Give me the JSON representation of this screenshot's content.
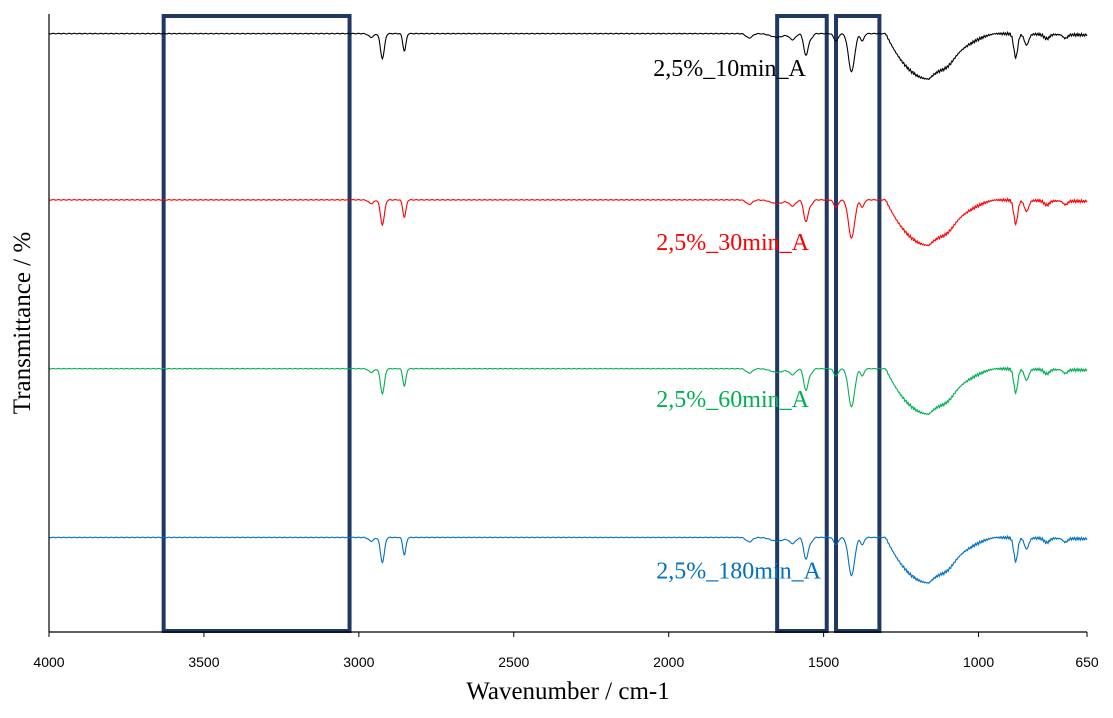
{
  "chart_data": {
    "type": "line",
    "title": "",
    "xlabel": "Wavenumber / cm-1",
    "ylabel": "Transmittance / %",
    "xlim": [
      4000,
      650
    ],
    "x_reversed": true,
    "ylim": [
      0,
      1
    ],
    "y_ticks_labeled": false,
    "grid": false,
    "legend": "none",
    "x_ticks": [
      4000,
      3500,
      3000,
      2500,
      2000,
      1500,
      1000,
      650
    ],
    "x_tick_labels": [
      "4000",
      "3500",
      "3000",
      "2500",
      "2000",
      "1500",
      "1000",
      "650"
    ],
    "highlight_regions": [
      {
        "x_range": [
          3630,
          3030
        ],
        "color": "#1f3864"
      },
      {
        "x_range": [
          1650,
          1490
        ],
        "color": "#1f3864"
      },
      {
        "x_range": [
          1460,
          1320
        ],
        "color": "#1f3864"
      }
    ],
    "series": [
      {
        "name": "2,5%_10min_A",
        "color": "#000000",
        "offset": 0.9683,
        "depth": 0.1185,
        "label_x": 2050,
        "label_y": 0.9
      },
      {
        "name": "2,5%_30min_A",
        "color": "#ff0000",
        "offset": 0.6992,
        "depth": 0.1185,
        "label_x": 2040,
        "label_y": 0.6183
      },
      {
        "name": "2,5%_60min_A",
        "color": "#00b050",
        "offset": 0.4261,
        "depth": 0.1185,
        "label_x": 2040,
        "label_y": 0.3637
      },
      {
        "name": "2,5%_180min_A",
        "color": "#0070c0",
        "offset": 0.153,
        "depth": 0.1185,
        "label_x": 2040,
        "label_y": 0.0869
      }
    ]
  }
}
